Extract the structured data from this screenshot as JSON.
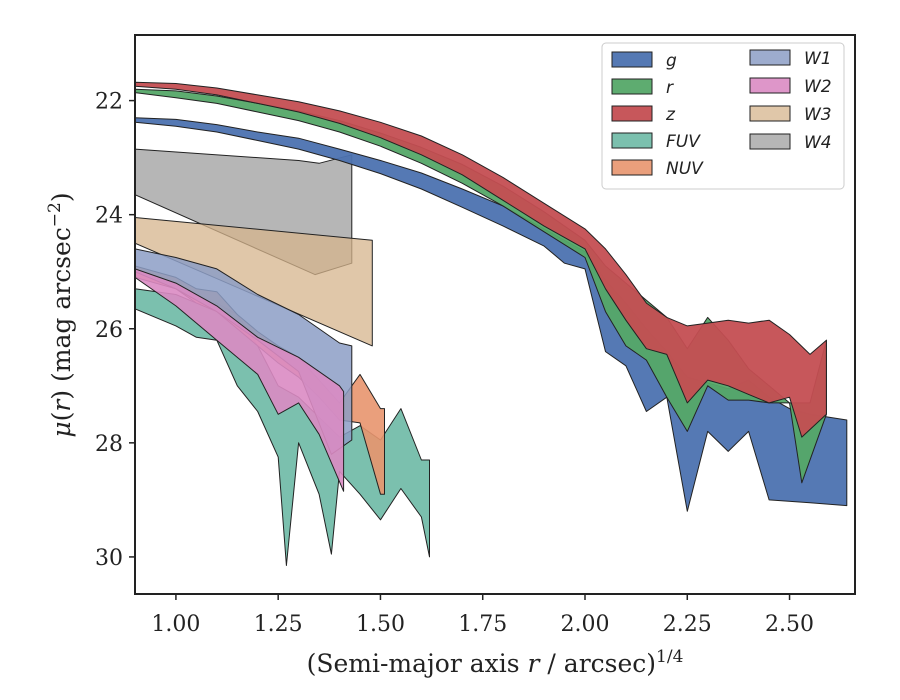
{
  "chart_data": {
    "type": "area",
    "xlabel": "(Semi-major axis r / arcsec)^1/4",
    "ylabel": "μ(r) (mag arcsec^−2)",
    "xlim": [
      0.9,
      2.66
    ],
    "ylim": [
      30.65,
      20.85
    ],
    "y_inverted": true,
    "x_ticks": [
      "1.00",
      "1.25",
      "1.50",
      "1.75",
      "2.00",
      "2.25",
      "2.50"
    ],
    "y_ticks": [
      "22",
      "24",
      "26",
      "28",
      "30"
    ],
    "legend_position": "top-right",
    "series": [
      {
        "name": "g",
        "color": "#4C72B0",
        "opacity": 0.95,
        "upper": [
          [
            0.9,
            22.3
          ],
          [
            1.0,
            22.33
          ],
          [
            1.1,
            22.42
          ],
          [
            1.2,
            22.55
          ],
          [
            1.3,
            22.66
          ],
          [
            1.4,
            22.85
          ],
          [
            1.5,
            23.05
          ],
          [
            1.6,
            23.27
          ],
          [
            1.7,
            23.55
          ],
          [
            1.8,
            23.85
          ],
          [
            1.9,
            24.25
          ],
          [
            2.0,
            24.65
          ],
          [
            2.05,
            25.15
          ],
          [
            2.1,
            25.55
          ],
          [
            2.15,
            26.0
          ],
          [
            2.2,
            26.4
          ],
          [
            2.25,
            26.85
          ],
          [
            2.3,
            26.95
          ],
          [
            2.35,
            27.05
          ],
          [
            2.4,
            26.9
          ],
          [
            2.45,
            27.2
          ],
          [
            2.5,
            27.4
          ],
          [
            2.55,
            27.5
          ],
          [
            2.64,
            27.6
          ]
        ],
        "lower": [
          [
            0.9,
            22.38
          ],
          [
            1.0,
            22.45
          ],
          [
            1.1,
            22.55
          ],
          [
            1.2,
            22.7
          ],
          [
            1.3,
            22.85
          ],
          [
            1.4,
            23.05
          ],
          [
            1.5,
            23.28
          ],
          [
            1.6,
            23.55
          ],
          [
            1.7,
            23.87
          ],
          [
            1.8,
            24.2
          ],
          [
            1.9,
            24.55
          ],
          [
            1.95,
            24.85
          ],
          [
            2.0,
            24.95
          ],
          [
            2.05,
            26.4
          ],
          [
            2.1,
            26.65
          ],
          [
            2.15,
            27.45
          ],
          [
            2.2,
            27.2
          ],
          [
            2.25,
            29.2
          ],
          [
            2.3,
            27.8
          ],
          [
            2.35,
            28.15
          ],
          [
            2.4,
            27.8
          ],
          [
            2.45,
            29.0
          ],
          [
            2.55,
            29.05
          ],
          [
            2.64,
            29.1
          ]
        ]
      },
      {
        "name": "r",
        "color": "#55A868",
        "opacity": 0.95,
        "upper": [
          [
            0.9,
            21.8
          ],
          [
            1.0,
            21.83
          ],
          [
            1.1,
            21.92
          ],
          [
            1.2,
            22.05
          ],
          [
            1.3,
            22.18
          ],
          [
            1.4,
            22.35
          ],
          [
            1.5,
            22.57
          ],
          [
            1.6,
            22.82
          ],
          [
            1.7,
            23.12
          ],
          [
            1.8,
            23.5
          ],
          [
            1.9,
            23.95
          ],
          [
            2.0,
            24.45
          ],
          [
            2.05,
            24.9
          ],
          [
            2.1,
            25.2
          ],
          [
            2.15,
            25.5
          ],
          [
            2.2,
            25.8
          ],
          [
            2.25,
            26.35
          ],
          [
            2.3,
            25.8
          ],
          [
            2.35,
            26.2
          ],
          [
            2.4,
            26.7
          ],
          [
            2.45,
            27.0
          ],
          [
            2.5,
            27.3
          ],
          [
            2.55,
            27.3
          ],
          [
            2.59,
            26.2
          ]
        ],
        "lower": [
          [
            0.9,
            21.86
          ],
          [
            1.0,
            21.95
          ],
          [
            1.1,
            22.05
          ],
          [
            1.2,
            22.2
          ],
          [
            1.3,
            22.35
          ],
          [
            1.4,
            22.55
          ],
          [
            1.5,
            22.8
          ],
          [
            1.6,
            23.1
          ],
          [
            1.7,
            23.45
          ],
          [
            1.8,
            23.85
          ],
          [
            1.9,
            24.3
          ],
          [
            2.0,
            24.75
          ],
          [
            2.05,
            25.7
          ],
          [
            2.1,
            26.3
          ],
          [
            2.15,
            26.55
          ],
          [
            2.2,
            27.2
          ],
          [
            2.25,
            27.8
          ],
          [
            2.3,
            27.0
          ],
          [
            2.35,
            27.25
          ],
          [
            2.4,
            27.25
          ],
          [
            2.45,
            27.3
          ],
          [
            2.5,
            27.3
          ],
          [
            2.53,
            28.7
          ],
          [
            2.59,
            27.5
          ]
        ]
      },
      {
        "name": "z",
        "color": "#C44E52",
        "opacity": 0.95,
        "upper": [
          [
            0.9,
            21.68
          ],
          [
            1.0,
            21.7
          ],
          [
            1.1,
            21.78
          ],
          [
            1.2,
            21.9
          ],
          [
            1.3,
            22.02
          ],
          [
            1.4,
            22.18
          ],
          [
            1.5,
            22.38
          ],
          [
            1.6,
            22.62
          ],
          [
            1.7,
            22.95
          ],
          [
            1.8,
            23.35
          ],
          [
            1.9,
            23.8
          ],
          [
            2.0,
            24.25
          ],
          [
            2.05,
            24.6
          ],
          [
            2.1,
            25.05
          ],
          [
            2.15,
            25.55
          ],
          [
            2.2,
            25.8
          ],
          [
            2.25,
            25.95
          ],
          [
            2.3,
            25.9
          ],
          [
            2.35,
            25.85
          ],
          [
            2.4,
            25.9
          ],
          [
            2.45,
            25.85
          ],
          [
            2.5,
            26.1
          ],
          [
            2.55,
            26.45
          ],
          [
            2.59,
            26.2
          ]
        ],
        "lower": [
          [
            0.9,
            21.75
          ],
          [
            1.0,
            21.8
          ],
          [
            1.1,
            21.9
          ],
          [
            1.2,
            22.05
          ],
          [
            1.3,
            22.2
          ],
          [
            1.4,
            22.4
          ],
          [
            1.5,
            22.65
          ],
          [
            1.6,
            22.95
          ],
          [
            1.7,
            23.3
          ],
          [
            1.8,
            23.75
          ],
          [
            1.9,
            24.2
          ],
          [
            2.0,
            24.6
          ],
          [
            2.05,
            25.3
          ],
          [
            2.1,
            25.85
          ],
          [
            2.15,
            26.35
          ],
          [
            2.2,
            26.45
          ],
          [
            2.25,
            27.3
          ],
          [
            2.3,
            26.9
          ],
          [
            2.35,
            27.0
          ],
          [
            2.4,
            27.15
          ],
          [
            2.45,
            27.3
          ],
          [
            2.5,
            27.2
          ],
          [
            2.53,
            27.9
          ],
          [
            2.59,
            27.5
          ]
        ]
      },
      {
        "name": "FUV",
        "color": "#64B5A0",
        "opacity": 0.85,
        "upper": [
          [
            0.9,
            25.3
          ],
          [
            1.0,
            25.4
          ],
          [
            1.05,
            25.55
          ],
          [
            1.1,
            25.55
          ],
          [
            1.15,
            25.75
          ],
          [
            1.2,
            26.3
          ],
          [
            1.25,
            27.0
          ],
          [
            1.3,
            27.2
          ],
          [
            1.35,
            27.55
          ],
          [
            1.4,
            27.9
          ],
          [
            1.45,
            27.7
          ],
          [
            1.5,
            27.95
          ],
          [
            1.55,
            27.4
          ],
          [
            1.6,
            28.3
          ],
          [
            1.62,
            28.3
          ]
        ],
        "lower": [
          [
            0.9,
            25.65
          ],
          [
            1.0,
            25.95
          ],
          [
            1.05,
            26.15
          ],
          [
            1.1,
            26.2
          ],
          [
            1.15,
            27.0
          ],
          [
            1.2,
            27.45
          ],
          [
            1.25,
            28.25
          ],
          [
            1.27,
            30.15
          ],
          [
            1.3,
            28.0
          ],
          [
            1.35,
            28.9
          ],
          [
            1.38,
            29.95
          ],
          [
            1.4,
            28.5
          ],
          [
            1.45,
            28.9
          ],
          [
            1.5,
            29.35
          ],
          [
            1.55,
            28.8
          ],
          [
            1.6,
            29.3
          ],
          [
            1.62,
            30.0
          ]
        ]
      },
      {
        "name": "NUV",
        "color": "#E8956E",
        "opacity": 0.9,
        "upper": [
          [
            0.9,
            24.9
          ],
          [
            1.0,
            25.1
          ],
          [
            1.05,
            25.3
          ],
          [
            1.1,
            25.35
          ],
          [
            1.15,
            25.75
          ],
          [
            1.2,
            26.05
          ],
          [
            1.25,
            26.3
          ],
          [
            1.3,
            26.5
          ],
          [
            1.35,
            26.9
          ],
          [
            1.4,
            27.3
          ],
          [
            1.45,
            26.8
          ],
          [
            1.5,
            27.4
          ],
          [
            1.51,
            27.4
          ]
        ],
        "lower": [
          [
            0.9,
            25.1
          ],
          [
            1.0,
            25.3
          ],
          [
            1.05,
            25.55
          ],
          [
            1.1,
            25.7
          ],
          [
            1.15,
            26.0
          ],
          [
            1.2,
            26.3
          ],
          [
            1.25,
            26.6
          ],
          [
            1.3,
            26.85
          ],
          [
            1.35,
            27.2
          ],
          [
            1.4,
            27.6
          ],
          [
            1.45,
            27.65
          ],
          [
            1.5,
            28.9
          ],
          [
            1.51,
            28.9
          ]
        ]
      },
      {
        "name": "W1",
        "color": "#8C9DC5",
        "opacity": 0.85,
        "upper": [
          [
            0.9,
            24.6
          ],
          [
            1.0,
            24.75
          ],
          [
            1.1,
            24.95
          ],
          [
            1.2,
            25.4
          ],
          [
            1.3,
            25.75
          ],
          [
            1.4,
            26.25
          ],
          [
            1.43,
            26.3
          ]
        ],
        "lower": [
          [
            0.9,
            25.0
          ],
          [
            1.0,
            25.3
          ],
          [
            1.1,
            25.7
          ],
          [
            1.2,
            26.2
          ],
          [
            1.3,
            26.75
          ],
          [
            1.38,
            28.2
          ],
          [
            1.43,
            27.95
          ]
        ]
      },
      {
        "name": "W2",
        "color": "#DA8BC3",
        "opacity": 0.9,
        "upper": [
          [
            0.9,
            24.95
          ],
          [
            1.0,
            25.2
          ],
          [
            1.1,
            25.6
          ],
          [
            1.2,
            26.15
          ],
          [
            1.3,
            26.5
          ],
          [
            1.4,
            27.0
          ],
          [
            1.41,
            27.1
          ]
        ],
        "lower": [
          [
            0.9,
            25.1
          ],
          [
            1.0,
            25.6
          ],
          [
            1.1,
            26.2
          ],
          [
            1.2,
            26.8
          ],
          [
            1.25,
            27.5
          ],
          [
            1.3,
            27.3
          ],
          [
            1.35,
            27.85
          ],
          [
            1.41,
            28.85
          ]
        ]
      },
      {
        "name": "W3",
        "color": "#D5B48C",
        "opacity": 0.75,
        "upper": [
          [
            0.9,
            24.05
          ],
          [
            1.48,
            24.45
          ]
        ],
        "lower": [
          [
            0.9,
            24.5
          ],
          [
            1.48,
            26.3
          ]
        ]
      },
      {
        "name": "W4",
        "color": "#A9A9A9",
        "opacity": 0.85,
        "upper": [
          [
            0.9,
            22.85
          ],
          [
            1.3,
            23.05
          ],
          [
            1.35,
            23.1
          ],
          [
            1.43,
            22.95
          ]
        ],
        "lower": [
          [
            0.9,
            23.65
          ],
          [
            1.34,
            25.05
          ],
          [
            1.43,
            24.85
          ]
        ]
      }
    ]
  }
}
